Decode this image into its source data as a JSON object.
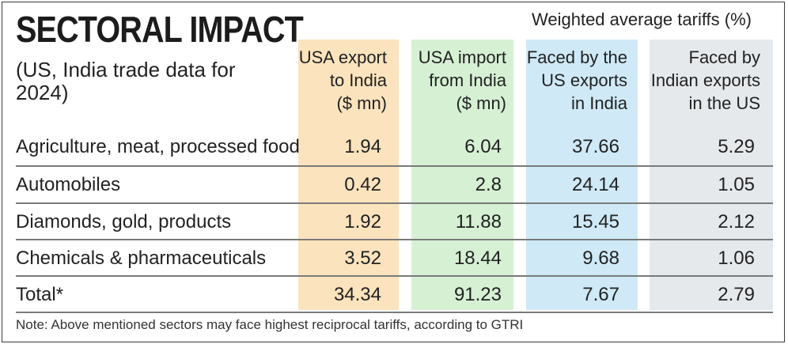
{
  "title": "SECTORAL IMPACT",
  "subtitle": "(US, India trade data for 2024)",
  "weighted_heading": "Weighted average tariffs (%)",
  "columns": {
    "c1": "USA export\nto India\n($ mn)",
    "c2": "USA import\nfrom India\n($ mn)",
    "c3": "Faced by the\nUS exports\nin India",
    "c4": "Faced by\nIndian exports\nin the US"
  },
  "rows": [
    {
      "sector": "Agriculture, meat, processed food",
      "usa_export": "1.94",
      "usa_import": "6.04",
      "tariff_us_in_india": "37.66",
      "tariff_india_in_us": "5.29"
    },
    {
      "sector": "Automobiles",
      "usa_export": "0.42",
      "usa_import": "2.8",
      "tariff_us_in_india": "24.14",
      "tariff_india_in_us": "1.05"
    },
    {
      "sector": "Diamonds, gold, products",
      "usa_export": "1.92",
      "usa_import": "11.88",
      "tariff_us_in_india": "15.45",
      "tariff_india_in_us": "2.12"
    },
    {
      "sector": "Chemicals & pharmaceuticals",
      "usa_export": "3.52",
      "usa_import": "18.44",
      "tariff_us_in_india": "9.68",
      "tariff_india_in_us": "1.06"
    },
    {
      "sector": "Total*",
      "usa_export": "34.34",
      "usa_import": "91.23",
      "tariff_us_in_india": "7.67",
      "tariff_india_in_us": "2.79"
    }
  ],
  "note": "Note: Above mentioned sectors may face highest reciprocal tariffs, according to GTRI",
  "colors": {
    "usa_export_col": "#fbe3bd",
    "usa_import_col": "#d6f0d4",
    "tariff_us_col": "#cfe9f6",
    "tariff_india_col": "#e6e9ec"
  }
}
